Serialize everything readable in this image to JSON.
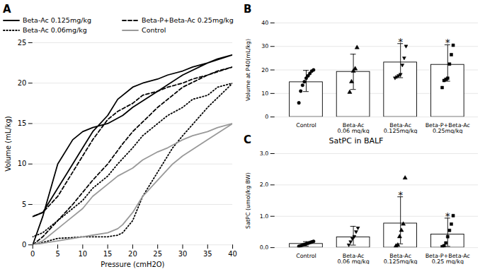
{
  "chart_data": [
    {
      "type": "line",
      "title": "A",
      "xlabel": "Pressure (cmH2O)",
      "ylabel": "Volume (mL/kg)",
      "xlim": [
        0,
        40
      ],
      "ylim": [
        0,
        25
      ],
      "xticks": [
        0,
        5,
        10,
        15,
        20,
        25,
        30,
        35,
        40
      ],
      "yticks": [
        0,
        5,
        10,
        15,
        20,
        25
      ],
      "grid": true,
      "legend": "upper left",
      "series": [
        {
          "name": "Beta-Ac 0.125mg/kg",
          "color": "#000000",
          "line_style": "solid",
          "x": [
            0,
            2,
            5,
            8,
            10,
            12,
            15,
            18,
            20,
            25,
            30,
            35,
            40,
            40,
            37,
            35,
            32,
            30,
            27,
            25,
            22,
            20,
            17,
            15,
            12,
            10,
            7,
            5,
            2,
            0
          ],
          "values": [
            0,
            3.5,
            10,
            13,
            14,
            14.5,
            15,
            16,
            17,
            19,
            21,
            22.5,
            23.5,
            23.5,
            23,
            22.5,
            22,
            21.5,
            21,
            20.5,
            20,
            19.5,
            18,
            16,
            14,
            12,
            9,
            7,
            4,
            3.5
          ]
        },
        {
          "name": "Beta-P+Beta-Ac 0.25mg/kg",
          "color": "#000000",
          "line_style": "dashed",
          "x": [
            0,
            2,
            5,
            8,
            10,
            12,
            15,
            18,
            20,
            25,
            30,
            35,
            40,
            40,
            37,
            35,
            32,
            30,
            27,
            25,
            22,
            20,
            17,
            15,
            12,
            10,
            7,
            5,
            2,
            0
          ],
          "values": [
            0,
            1,
            3,
            5,
            6.5,
            8,
            10,
            12.5,
            14,
            17,
            19.5,
            21,
            22,
            22,
            21.5,
            21,
            20.5,
            20,
            19.5,
            19,
            18.5,
            17.5,
            16.5,
            15.5,
            13,
            11,
            8,
            6,
            4,
            3.5
          ]
        },
        {
          "name": "Beta-Ac 0.06mg/kg",
          "color": "#000000",
          "line_style": "dotted",
          "x": [
            0,
            2,
            5,
            8,
            10,
            12,
            15,
            17,
            18,
            20,
            22,
            25,
            28,
            30,
            35,
            40,
            40,
            37,
            35,
            32,
            30,
            27,
            25,
            22,
            20,
            17,
            15,
            12,
            10,
            7,
            5,
            2,
            0
          ],
          "values": [
            0,
            0.3,
            0.8,
            0.9,
            1.0,
            1.0,
            1.0,
            1.2,
            1.5,
            3,
            6,
            9,
            12,
            13.5,
            17,
            20,
            20,
            19.5,
            18.5,
            18,
            17,
            16,
            15,
            13.5,
            12,
            10,
            8.5,
            7,
            5.5,
            4,
            3,
            1.5,
            1
          ]
        },
        {
          "name": "Control",
          "color": "#999999",
          "line_style": "solid",
          "x": [
            0,
            2,
            5,
            8,
            10,
            12,
            15,
            17,
            18,
            20,
            22,
            25,
            28,
            30,
            35,
            40,
            40,
            37,
            35,
            32,
            30,
            27,
            25,
            22,
            20,
            17,
            15,
            12,
            10,
            7,
            5,
            2,
            0
          ],
          "values": [
            0,
            0.2,
            0.5,
            0.8,
            1.0,
            1.2,
            1.5,
            2,
            2.5,
            4,
            6,
            8,
            10,
            11,
            13,
            15,
            15,
            14.5,
            14,
            13.5,
            13,
            12,
            11.5,
            10.5,
            9.5,
            8.5,
            7.5,
            6,
            4.5,
            3,
            2,
            0.5,
            0
          ]
        }
      ]
    },
    {
      "type": "bar",
      "title": "B",
      "ylabel": "Volume at P40(mL/kg)",
      "ylim": [
        0,
        40
      ],
      "yticks": [
        0,
        10,
        20,
        30,
        40
      ],
      "grid": true,
      "categories": [
        "Control",
        "Beta-Ac\n0.06 mg/kg",
        "Beta-Ac\n0.125mg/kg",
        "Beta-P+Beta-Ac\n0.25mg/kg"
      ],
      "values": [
        14.8,
        19.2,
        23.2,
        22.2
      ],
      "color": "#ffffff",
      "error_lo": [
        4.0,
        7.5,
        6.5,
        7.0
      ],
      "error_hi": [
        5.0,
        7.5,
        8.0,
        8.5
      ],
      "points": [
        {
          "values": [
            6.0,
            11.0,
            13.5,
            15.0,
            16.5,
            17.5,
            18.5,
            19.5,
            20.0
          ],
          "marker": "circle"
        },
        {
          "values": [
            10.5,
            15.0,
            19.5,
            20.5,
            29.5
          ],
          "marker": "triangle-up"
        },
        {
          "values": [
            16.5,
            17.0,
            17.5,
            18.0,
            22.0,
            25.0,
            30.0
          ],
          "marker": "triangle-down"
        },
        {
          "values": [
            12.5,
            15.5,
            16.0,
            16.5,
            22.5,
            26.5,
            30.5
          ],
          "marker": "square"
        }
      ],
      "annotations": [
        {
          "category": "Beta-Ac\n0.125mg/kg",
          "text": "*"
        },
        {
          "category": "Beta-P+Beta-Ac\n0.25mg/kg",
          "text": "*"
        }
      ]
    },
    {
      "type": "bar",
      "title": "C",
      "subtitle": "SatPC in BALF",
      "ylabel": "SatPC (umol/kg BW)",
      "ylim": [
        0,
        3
      ],
      "yticks": [
        0,
        1,
        2,
        3
      ],
      "grid": true,
      "categories": [
        "Control",
        "Beta-Ac\n0.06 mg/kg",
        "Beta-Ac\n0.125mg/kg",
        "Beta-P+Beta-Ac\n0.25 mg/kg"
      ],
      "values": [
        0.12,
        0.33,
        0.77,
        0.42
      ],
      "color": "#ffffff",
      "error_lo": [
        0.07,
        0.25,
        0.65,
        0.38
      ],
      "error_hi": [
        0.07,
        0.35,
        0.85,
        0.52
      ],
      "points": [
        {
          "values": [
            0.04,
            0.06,
            0.08,
            0.1,
            0.12,
            0.14,
            0.16,
            0.18,
            0.2
          ],
          "marker": "circle"
        },
        {
          "values": [
            0.08,
            0.18,
            0.28,
            0.35,
            0.5,
            0.62
          ],
          "marker": "triangle-down"
        },
        {
          "values": [
            0.05,
            0.08,
            0.35,
            0.55,
            0.75,
            2.22
          ],
          "marker": "triangle-up"
        },
        {
          "values": [
            0.03,
            0.06,
            0.15,
            0.35,
            0.55,
            0.75,
            1.02
          ],
          "marker": "square"
        }
      ],
      "annotations": [
        {
          "category": "Beta-Ac\n0.125mg/kg",
          "text": "*"
        },
        {
          "category": "Beta-P+Beta-Ac\n0.25 mg/kg",
          "text": "*"
        }
      ]
    }
  ]
}
